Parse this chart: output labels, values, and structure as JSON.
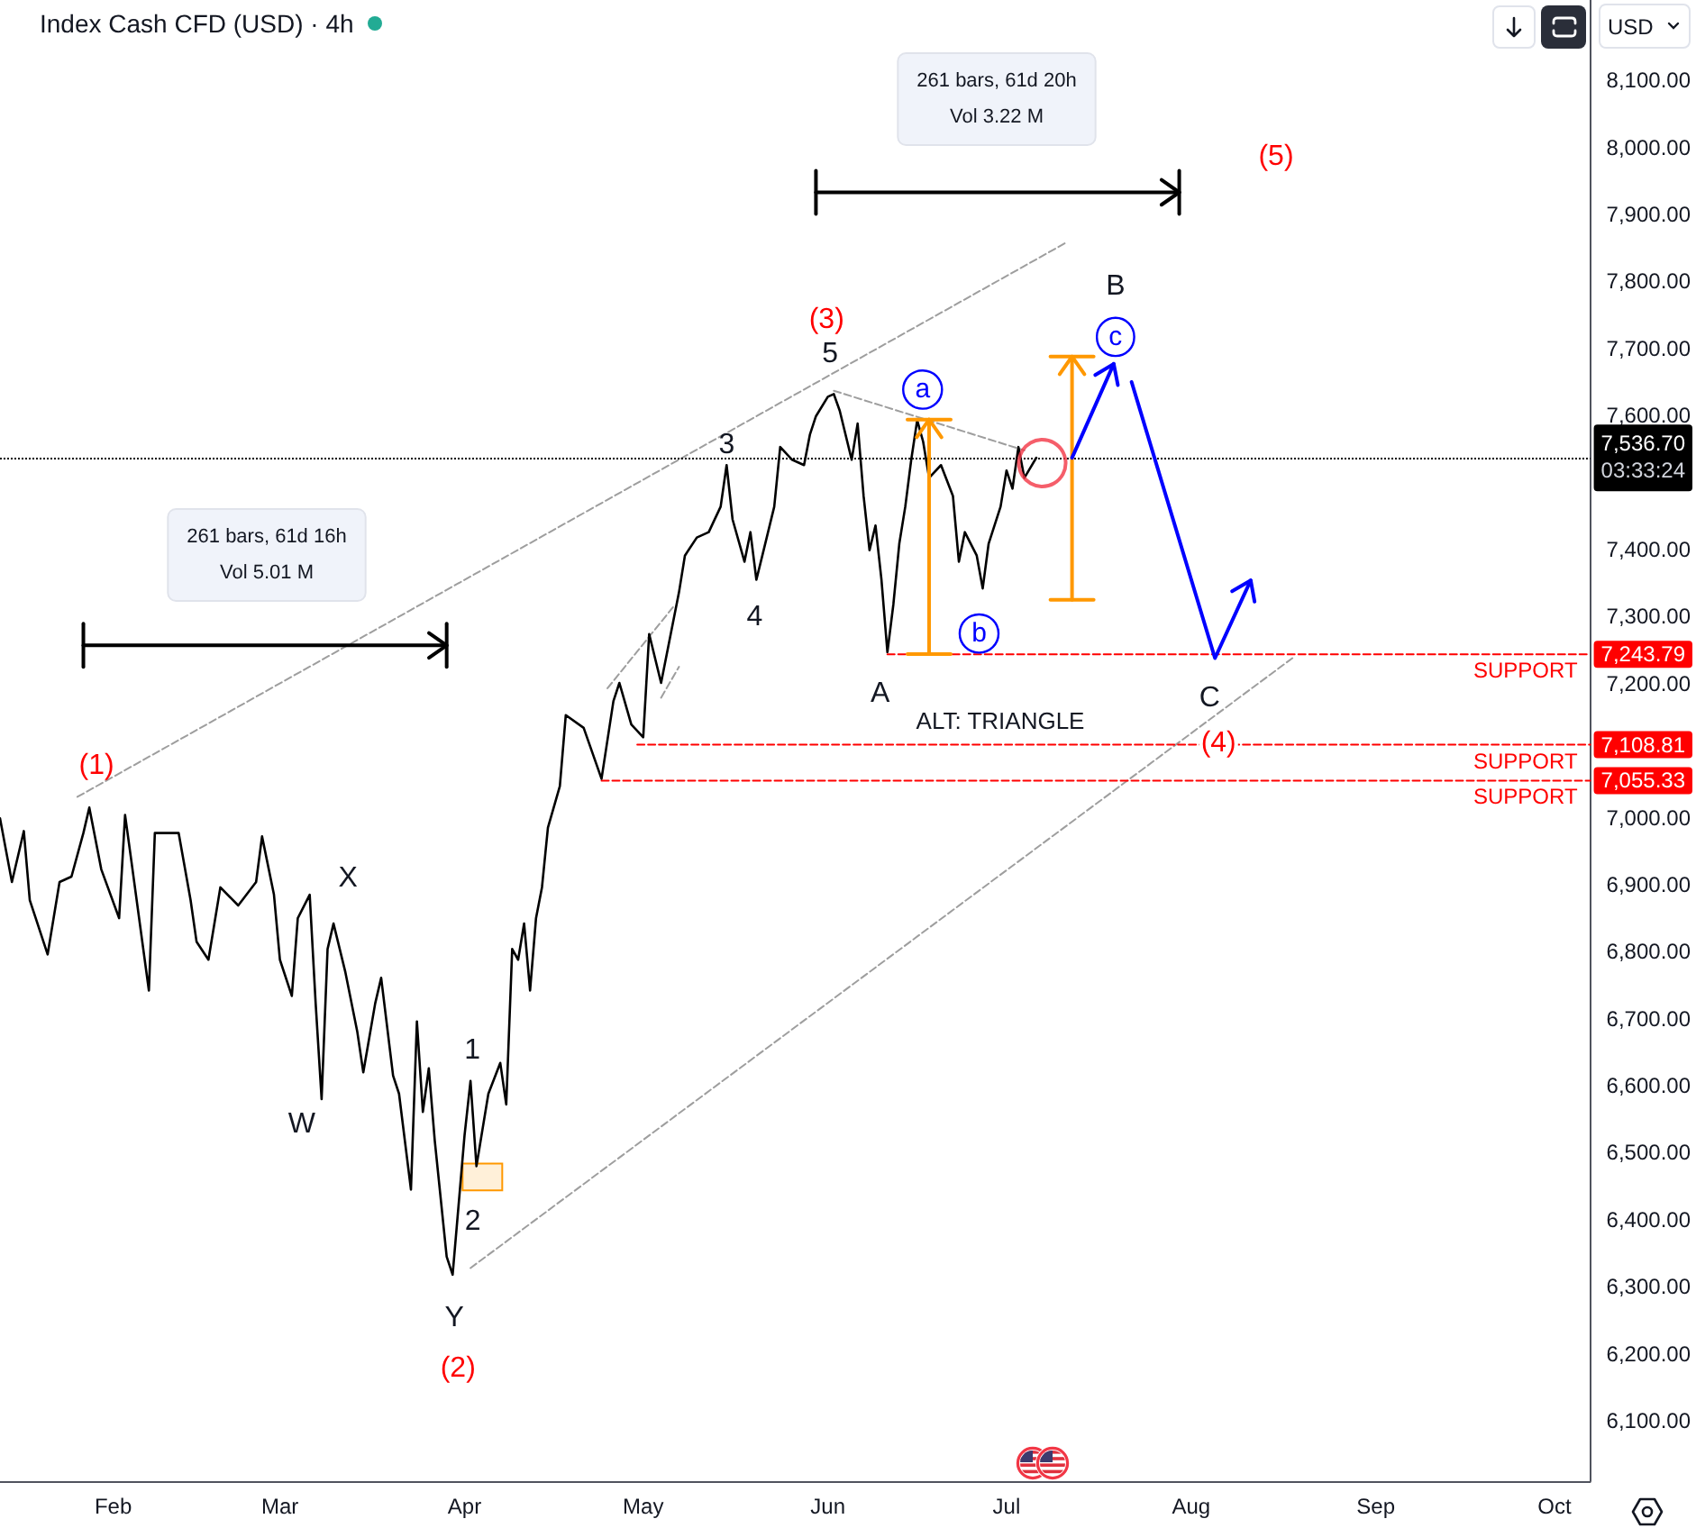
{
  "chart_data": {
    "type": "line",
    "title": "Index Cash CFD (USD) · 4h",
    "ylabel": "USD",
    "x": [
      "--01-13",
      "--01-15",
      "--01-17",
      "--01-18",
      "--01-21",
      "--01-23",
      "--01-25",
      "--01-27",
      "--01-28",
      "--01-30",
      "--02-02",
      "--02-03",
      "--02-04",
      "--02-07",
      "--02-08",
      "--02-12",
      "--02-14",
      "--02-15",
      "--02-17",
      "--02-19",
      "--02-22",
      "--02-25",
      "--02-26",
      "--02-28",
      "--03-01",
      "--03-03",
      "--03-04",
      "--03-06",
      "--03-07",
      "--03-08",
      "--03-09",
      "--03-10",
      "--03-12",
      "--03-14",
      "--03-15",
      "--03-17",
      "--03-18",
      "--03-20",
      "--03-21",
      "--03-23",
      "--03-24",
      "--03-25",
      "--03-26",
      "--03-27",
      "--03-29",
      "--03-30",
      "--04-01",
      "--04-02",
      "--04-03",
      "--04-05",
      "--04-07",
      "--04-08",
      "--04-09",
      "--04-10",
      "--04-11",
      "--04-12",
      "--04-13",
      "--04-14",
      "--04-15",
      "--04-17",
      "--04-18",
      "--04-21",
      "--04-24",
      "--04-26",
      "--04-27",
      "--04-29",
      "--05-01",
      "--05-02",
      "--05-04",
      "--05-07",
      "--05-08",
      "--05-10",
      "--05-12",
      "--05-14",
      "--05-15",
      "--05-16",
      "--05-18",
      "--05-19",
      "--05-20",
      "--05-21",
      "--05-23",
      "--05-24",
      "--05-26",
      "--05-28",
      "--05-29",
      "--05-30",
      "--06-01",
      "--06-02",
      "--06-03",
      "--06-05",
      "--06-06",
      "--06-07",
      "--06-08",
      "--06-09",
      "--06-10",
      "--06-11",
      "--06-12",
      "--06-13",
      "--06-14",
      "--06-15",
      "--06-16",
      "--06-17",
      "--06-18",
      "--06-20",
      "--06-22",
      "--06-23",
      "--06-24",
      "--06-26",
      "--06-27",
      "--06-28",
      "--06-30",
      "--07-01",
      "--07-02",
      "--07-03",
      "--07-04",
      "--07-06"
    ],
    "series": [
      {
        "color": "#000000",
        "values": [
          6999,
          6904,
          6980,
          6877,
          6796,
          6904,
          6912,
          6977,
          7015,
          6923,
          6850,
          7004,
          6939,
          6742,
          6977,
          6977,
          6877,
          6815,
          6788,
          6896,
          6869,
          6904,
          6972,
          6885,
          6788,
          6734,
          6850,
          6885,
          6723,
          6580,
          6804,
          6842,
          6769,
          6680,
          6620,
          6723,
          6761,
          6615,
          6588,
          6445,
          6696,
          6561,
          6626,
          6518,
          6345,
          6318,
          6526,
          6607,
          6480,
          6588,
          6634,
          6572,
          6804,
          6788,
          6842,
          6742,
          6850,
          6896,
          6985,
          7047,
          7153,
          7134,
          7058,
          7174,
          7201,
          7139,
          7120,
          7274,
          7201,
          7336,
          7391,
          7418,
          7426,
          7464,
          7526,
          7445,
          7382,
          7426,
          7355,
          7391,
          7464,
          7553,
          7534,
          7526,
          7572,
          7599,
          7628,
          7632,
          7607,
          7534,
          7588,
          7480,
          7399,
          7436,
          7355,
          7247,
          7318,
          7409,
          7464,
          7534,
          7593,
          7561,
          7507,
          7526,
          7480,
          7382,
          7426,
          7391,
          7342,
          7409,
          7464,
          7518,
          7491,
          7553,
          7507,
          7537
        ]
      },
      {
        "type": "line",
        "x": [
          "--01-26",
          "--07-11"
        ],
        "values": [
          7031,
          7858
        ],
        "color": "#9e9e9e",
        "line_style": "dashed"
      },
      {
        "type": "line",
        "x": [
          "--04-02",
          "--08-18"
        ],
        "values": [
          6328,
          7238
        ],
        "color": "#9e9e9e",
        "line_style": "dashed"
      },
      {
        "type": "line",
        "x": [
          "--06-02",
          "--07-04"
        ],
        "values": [
          7637,
          7548
        ],
        "color": "#9e9e9e",
        "line_style": "dashed"
      },
      {
        "type": "line",
        "x": [
          "--04-25",
          "--05-06"
        ],
        "values": [
          7193,
          7314
        ],
        "color": "#9e9e9e",
        "line_style": "dashed"
      },
      {
        "type": "line",
        "x": [
          "--05-04",
          "--05-07"
        ],
        "values": [
          7179,
          7225
        ],
        "color": "#9e9e9e",
        "line_style": "dashed"
      },
      {
        "type": "line",
        "name": "SUPPORT",
        "x": [
          "--06-11",
          "--10-07"
        ],
        "values": [
          7243.79,
          7243.79
        ],
        "color": "#ff0000",
        "line_style": "dashed",
        "value_labels": [
          null,
          "7,243.79"
        ]
      },
      {
        "type": "line",
        "name": "SUPPORT",
        "x": [
          "--04-30",
          "--10-07"
        ],
        "values": [
          7108.81,
          7108.81
        ],
        "color": "#ff0000",
        "line_style": "dashed",
        "value_labels": [
          null,
          "7,108.81"
        ]
      },
      {
        "type": "line",
        "name": "SUPPORT",
        "x": [
          "--04-24",
          "--10-07"
        ],
        "values": [
          7055.33,
          7055.33
        ],
        "color": "#ff0000",
        "line_style": "dashed",
        "value_labels": [
          null,
          "7,055.33"
        ]
      },
      {
        "type": "line",
        "x": [
          "--01-27",
          "--03-29"
        ],
        "values": [
          7257,
          7257
        ],
        "color": "#000000",
        "line_style": "solid"
      },
      {
        "type": "line",
        "x": [
          "--05-30",
          "--07-30"
        ],
        "values": [
          7933,
          7933
        ],
        "color": "#000000",
        "line_style": "solid"
      },
      {
        "type": "line",
        "x": [
          "--06-18",
          "--06-18"
        ],
        "values": [
          7244,
          7594
        ],
        "color": "#ff9800",
        "line_style": "solid"
      },
      {
        "type": "line",
        "x": [
          "--07-12",
          "--07-12"
        ],
        "values": [
          7325,
          7688
        ],
        "color": "#ff9800",
        "line_style": "solid"
      },
      {
        "type": "line",
        "x": [
          "--07-12",
          "--07-19",
          "--07-20",
          "--07-22",
          "--08-05",
          "--08-11"
        ],
        "values": [
          7537,
          7677,
          null,
          7650,
          7238,
          7354
        ],
        "color": "#0000ff",
        "line_style": "solid"
      },
      {
        "type": "scatter",
        "x": [
          "--07-07"
        ],
        "values": [
          7529
        ],
        "color": "#f23645",
        "marker": "circle"
      },
      {
        "type": "bar",
        "x": [
          "--04-04"
        ],
        "base": [
          6444
        ],
        "values": [
          40
        ],
        "color": "#ff9800"
      }
    ],
    "xlim": [
      "--01-13",
      "--10-07"
    ],
    "xticks": [
      {
        "value": "--02-01",
        "label": "Feb"
      },
      {
        "value": "--03-01",
        "label": "Mar"
      },
      {
        "value": "--04-01",
        "label": "Apr"
      },
      {
        "value": "--05-01",
        "label": "May"
      },
      {
        "value": "--06-01",
        "label": "Jun"
      },
      {
        "value": "--07-01",
        "label": "Jul"
      },
      {
        "value": "--08-01",
        "label": "Aug"
      },
      {
        "value": "--09-01",
        "label": "Sep"
      },
      {
        "value": "--10-01",
        "label": "Oct"
      }
    ],
    "ylim": [
      6010,
      8220
    ],
    "yticks": [
      {
        "value": 6100,
        "label": "6,100.00"
      },
      {
        "value": 6200,
        "label": "6,200.00"
      },
      {
        "value": 6300,
        "label": "6,300.00"
      },
      {
        "value": 6400,
        "label": "6,400.00"
      },
      {
        "value": 6500,
        "label": "6,500.00"
      },
      {
        "value": 6600,
        "label": "6,600.00"
      },
      {
        "value": 6700,
        "label": "6,700.00"
      },
      {
        "value": 6800,
        "label": "6,800.00"
      },
      {
        "value": 6900,
        "label": "6,900.00"
      },
      {
        "value": 7000,
        "label": "7,000.00"
      },
      {
        "value": 7200,
        "label": "7,200.00"
      },
      {
        "value": 7300,
        "label": "7,300.00"
      },
      {
        "value": 7400,
        "label": "7,400.00"
      },
      {
        "value": 7600,
        "label": "7,600.00"
      },
      {
        "value": 7700,
        "label": "7,700.00"
      },
      {
        "value": 7800,
        "label": "7,800.00"
      },
      {
        "value": 7900,
        "label": "7,900.00"
      },
      {
        "value": 8000,
        "label": "8,000.00"
      },
      {
        "value": 8100,
        "label": "8,100.00"
      }
    ],
    "ref_lines": [
      {
        "axis": "y",
        "value": 7536.7,
        "label": "7,536.70",
        "color": "#000000",
        "line_style": "dotted"
      }
    ],
    "annotations": [
      {
        "text": "(1)",
        "x": "--01-28",
        "y": 7015
      },
      {
        "text": "(2)",
        "x": "--03-30",
        "y": 6318
      },
      {
        "text": "(3)",
        "x": "--06-02",
        "y": 7632
      },
      {
        "text": "(4)",
        "x": "--08-05",
        "y": 7238
      },
      "(5)",
      {
        "text": "W",
        "x": "--03-08",
        "y": 6580
      },
      {
        "text": "X",
        "x": "--03-10",
        "y": 6842
      },
      {
        "text": "Y",
        "x": "--03-30",
        "y": 6318
      },
      {
        "text": "1",
        "x": "--04-02",
        "y": 6607
      },
      {
        "text": "2",
        "x": "--04-03",
        "y": 6480
      },
      {
        "text": "3",
        "x": "--05-15",
        "y": 7526
      },
      {
        "text": "4",
        "x": "--05-20",
        "y": 7355
      },
      {
        "text": "5",
        "x": "--06-02",
        "y": 7632
      },
      {
        "text": "A",
        "x": "--06-11",
        "y": 7247
      },
      {
        "text": "B",
        "x": "--07-19",
        "y": 7677
      },
      {
        "text": "C",
        "x": "--08-05",
        "y": 7238
      },
      {
        "text": "a",
        "x": "--06-16",
        "y": 7593
      },
      {
        "text": "b",
        "x": "--06-27",
        "y": 7342
      },
      {
        "text": "c",
        "x": "--07-19",
        "y": 7677
      },
      "ALT: TRIANGLE",
      "261 bars, 61d 16h\nVol 5.01 M",
      "261 bars, 61d 20h\nVol 3.22 M",
      "03:33:24"
    ]
  }
}
